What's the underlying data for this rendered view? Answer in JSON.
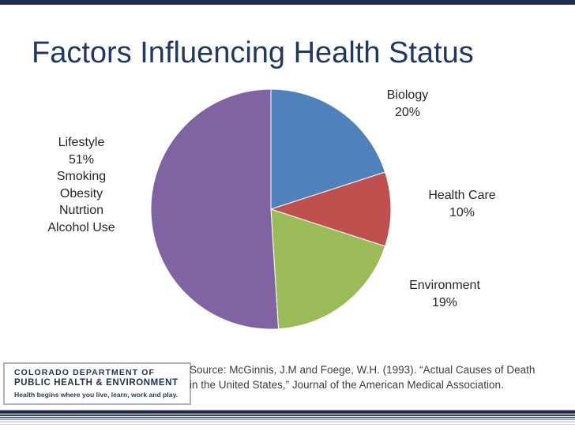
{
  "slide": {
    "title": "Factors Influencing Health Status",
    "colors": {
      "title_text": "#1f3864",
      "top_bar": "#1d2e4f",
      "stripe_dark": "#1c2a47",
      "label_text": "#262626"
    }
  },
  "labels": {
    "biology": {
      "line1": "Biology",
      "line2": "20%"
    },
    "health_care": {
      "line1": "Health Care",
      "line2": "10%"
    },
    "environment": {
      "line1": "Environment",
      "line2": "19%"
    },
    "lifestyle": {
      "lines": [
        "Lifestyle",
        "51%",
        "Smoking",
        "Obesity",
        "Nutrtion",
        "Alcohol Use"
      ]
    }
  },
  "logo": {
    "line1": "COLORADO DEPARTMENT OF",
    "line2": "PUBLIC HEALTH & ENVIRONMENT",
    "tagline": "Health begins where you live, learn, work and play."
  },
  "source": {
    "line1": "Source: McGinnis, J.M and Foege, W.H. (1993). “Actual Causes of Death",
    "line2": "in the United States,” Journal of the American Medical Association."
  },
  "chart_data": {
    "type": "pie",
    "title": "Factors Influencing Health Status",
    "start_angle_deg": 0,
    "direction": "clockwise",
    "legend": "none",
    "slices": [
      {
        "label": "Biology",
        "value": 20,
        "display": "20%",
        "color": "#4f81bd"
      },
      {
        "label": "Health Care",
        "value": 10,
        "display": "10%",
        "color": "#c0504d"
      },
      {
        "label": "Environment",
        "value": 19,
        "display": "19%",
        "color": "#9bbb59"
      },
      {
        "label": "Lifestyle",
        "value": 51,
        "display": "51%",
        "color": "#8064a2",
        "sub_items": [
          "Smoking",
          "Obesity",
          "Nutrtion",
          "Alcohol Use"
        ]
      }
    ]
  }
}
